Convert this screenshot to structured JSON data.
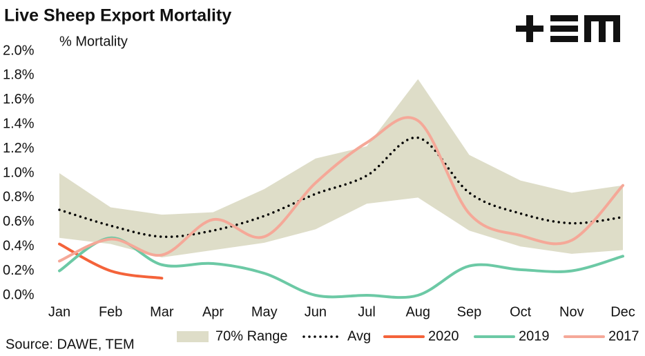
{
  "chart_data": {
    "type": "line",
    "title": "Live Sheep Export Mortality",
    "y_label": "% Mortality",
    "source": "Source: DAWE, TEM",
    "categories": [
      "Jan",
      "Feb",
      "Mar",
      "Apr",
      "May",
      "Jun",
      "Jul",
      "Aug",
      "Sep",
      "Oct",
      "Nov",
      "Dec"
    ],
    "ylim": [
      0,
      2.0
    ],
    "yticks": [
      {
        "value": 0,
        "label": "0.0%"
      },
      {
        "value": 0.2,
        "label": "0.2%"
      },
      {
        "value": 0.4,
        "label": "0.4%"
      },
      {
        "value": 0.6,
        "label": "0.6%"
      },
      {
        "value": 0.8,
        "label": "0.8%"
      },
      {
        "value": 1.0,
        "label": "1.0%"
      },
      {
        "value": 1.2,
        "label": "1.2%"
      },
      {
        "value": 1.4,
        "label": "1.4%"
      },
      {
        "value": 1.6,
        "label": "1.6%"
      },
      {
        "value": 1.8,
        "label": "1.8%"
      },
      {
        "value": 2.0,
        "label": "2.0%"
      }
    ],
    "grid": false,
    "series": [
      {
        "name": "70% Range",
        "color": "#deddc8",
        "style": "area",
        "lower": [
          0.47,
          0.42,
          0.31,
          0.37,
          0.43,
          0.54,
          0.75,
          0.8,
          0.53,
          0.4,
          0.34,
          0.37
        ],
        "upper": [
          1.0,
          0.72,
          0.66,
          0.68,
          0.87,
          1.12,
          1.22,
          1.77,
          1.15,
          0.94,
          0.84,
          0.9
        ]
      },
      {
        "name": "Avg",
        "color": "#000000",
        "style": "dotted",
        "values": [
          0.7,
          0.57,
          0.48,
          0.53,
          0.65,
          0.83,
          0.98,
          1.29,
          0.84,
          0.67,
          0.59,
          0.64
        ]
      },
      {
        "name": "2020",
        "color": "#f4633a",
        "style": "solid",
        "values": [
          0.42,
          0.2,
          0.14,
          null,
          null,
          null,
          null,
          null,
          null,
          null,
          null,
          null
        ]
      },
      {
        "name": "2019",
        "color": "#6cc9a5",
        "style": "solid",
        "values": [
          0.2,
          0.47,
          0.25,
          0.26,
          0.18,
          0.0,
          0.0,
          0.0,
          0.24,
          0.21,
          0.2,
          0.32
        ]
      },
      {
        "name": "2017",
        "color": "#f5a898",
        "style": "solid",
        "values": [
          0.28,
          0.46,
          0.33,
          0.62,
          0.48,
          0.92,
          1.25,
          1.43,
          0.67,
          0.49,
          0.45,
          0.9
        ]
      }
    ]
  }
}
